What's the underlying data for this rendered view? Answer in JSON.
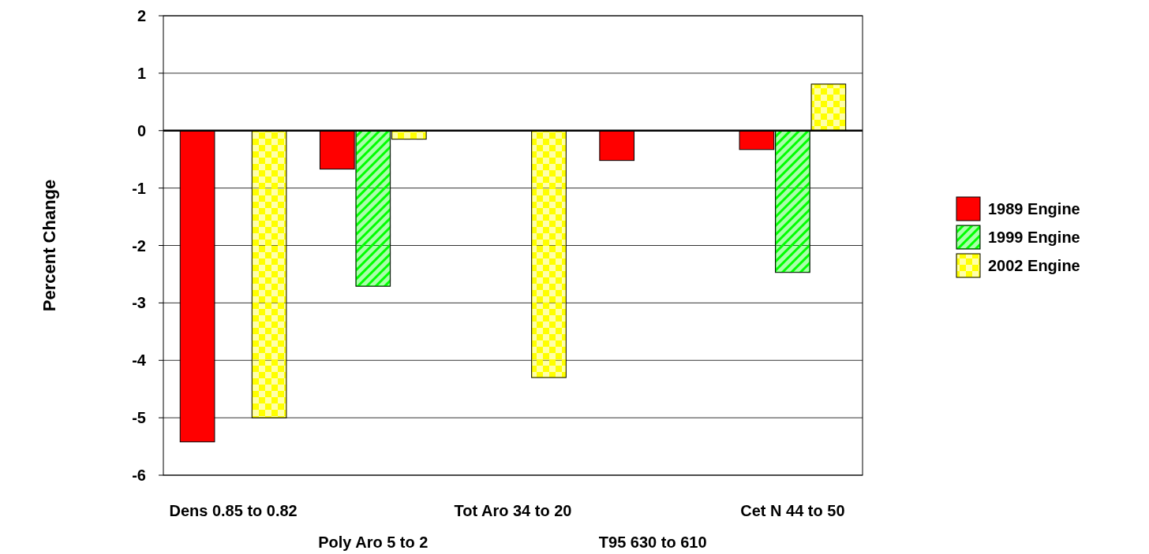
{
  "chart_data": {
    "type": "bar",
    "ylabel": "Percent Change",
    "categories": [
      "Dens 0.85 to 0.82",
      "Poly Aro 5 to 2",
      "Tot Aro 34 to 20",
      "T95 630 to 610",
      "Cet N 44 to 50"
    ],
    "series": [
      {
        "name": "1989 Engine",
        "color": "#ff0000",
        "values": [
          -5.42,
          -0.67,
          null,
          -0.52,
          -0.33
        ]
      },
      {
        "name": "1999 Engine",
        "color": "#00ff00",
        "values": [
          null,
          -2.71,
          null,
          null,
          -2.47
        ]
      },
      {
        "name": "2002 Engine",
        "color": "#ffff00",
        "values": [
          -5.0,
          -0.15,
          -4.3,
          null,
          0.81
        ]
      }
    ],
    "ylim": [
      -6,
      2
    ],
    "yticks": [
      -6,
      -5,
      -4,
      -3,
      -2,
      -1,
      0,
      1,
      2
    ],
    "grid": "y",
    "legend": "right"
  }
}
